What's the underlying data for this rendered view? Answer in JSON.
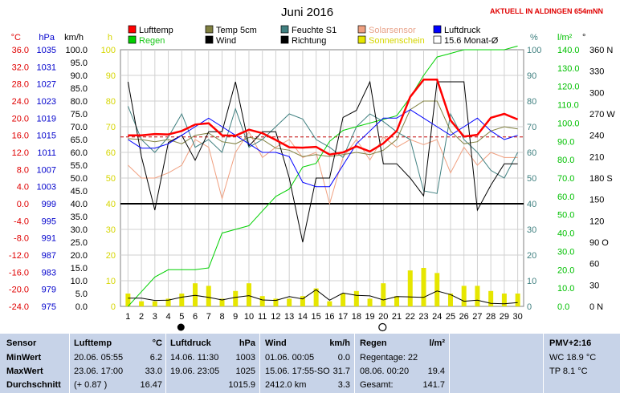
{
  "header": {
    "title": "Juni 2016",
    "location": "AKTUELL IN ALDINGEN 654mNN"
  },
  "legend": [
    {
      "label": "Lufttemp",
      "color": "#ff0000",
      "text_class": "leg"
    },
    {
      "label": "Temp 5cm",
      "color": "#808040",
      "text_class": "leg"
    },
    {
      "label": "Feuchte S1",
      "color": "#408080",
      "text_class": "leg"
    },
    {
      "label": "Solarsensor",
      "color": "#f0a080",
      "text_class": "leg-orange"
    },
    {
      "label": "Luftdruck",
      "color": "#0000ff",
      "text_class": "leg"
    },
    {
      "label": "Regen",
      "color": "#00d000",
      "text_class": "leg-green"
    },
    {
      "label": "Wind",
      "color": "#000000",
      "text_class": "leg"
    },
    {
      "label": "Richtung",
      "color": "#000000",
      "text_class": "leg"
    },
    {
      "label": "Sonnenschein",
      "color": "#e6e600",
      "text_class": "leg-yellow"
    },
    {
      "label": "15.6 Monat-Ø",
      "color": "#ffffff",
      "text_class": "leg"
    }
  ],
  "axes": {
    "temp": {
      "unit": "°C",
      "color": "#e00000",
      "ticks": [
        "36.0",
        "32.0",
        "28.0",
        "24.0",
        "20.0",
        "16.0",
        "12.0",
        "8.0",
        "4.0",
        "0.0",
        "-4.0",
        "-8.0",
        "-12.0",
        "-16.0",
        "-20.0",
        "-24.0"
      ]
    },
    "press": {
      "unit": "hPa",
      "color": "#0000cc",
      "ticks": [
        "1035",
        "1031",
        "1027",
        "1023",
        "1019",
        "1015",
        "1011",
        "1007",
        "1003",
        "999",
        "995",
        "991",
        "987",
        "983",
        "979",
        "975"
      ]
    },
    "wind": {
      "unit": "km/h",
      "color": "#000000",
      "ticks": [
        "100.0",
        "95.0",
        "90.0",
        "85.0",
        "80.0",
        "75.0",
        "70.0",
        "65.0",
        "60.0",
        "55.0",
        "50.0",
        "45.0",
        "40.0",
        "35.0",
        "30.0",
        "25.0",
        "20.0",
        "15.0",
        "10.0",
        "5.0",
        "0.0"
      ]
    },
    "sun": {
      "unit": "h",
      "color": "#d6d600",
      "ticks": [
        "100",
        "90",
        "80",
        "70",
        "60",
        "50",
        "40",
        "30",
        "20",
        "10",
        "0"
      ]
    },
    "humid": {
      "unit": "%",
      "color": "#408080",
      "ticks": [
        "100",
        "90",
        "80",
        "70",
        "60",
        "50",
        "40",
        "30",
        "20",
        "10",
        "0"
      ]
    },
    "rain": {
      "unit": "l/m²",
      "color": "#00c000",
      "ticks": [
        "140.0",
        "130.0",
        "120.0",
        "110.0",
        "100.0",
        "90.0",
        "80.0",
        "70.0",
        "60.0",
        "50.0",
        "40.0",
        "30.0",
        "20.0",
        "10.0",
        "0.0"
      ]
    },
    "dir": {
      "unit": "°",
      "color": "#000000",
      "ticks": [
        "360 N",
        "330",
        "300",
        "270 W",
        "240",
        "210",
        "180 S",
        "150",
        "120",
        "90 O",
        "60",
        "30",
        "0 N"
      ]
    }
  },
  "chart_data": {
    "type": "line",
    "title": "Juni 2016",
    "x": [
      1,
      2,
      3,
      4,
      5,
      6,
      7,
      8,
      9,
      10,
      11,
      12,
      13,
      14,
      15,
      16,
      17,
      18,
      19,
      20,
      21,
      22,
      23,
      24,
      25,
      26,
      27,
      28,
      29,
      30
    ],
    "series": [
      {
        "name": "Lufttemp",
        "unit": "°C",
        "color": "#ff0000",
        "values": [
          16.0,
          16.0,
          16.3,
          16.2,
          17.0,
          18.5,
          18.8,
          16.0,
          15.9,
          17.3,
          16.5,
          14.9,
          13.2,
          13.1,
          13.3,
          11.5,
          12.0,
          13.4,
          12.2,
          14.1,
          17.0,
          25.0,
          29.0,
          29.0,
          19.5,
          15.7,
          16.1,
          20.1,
          21.0,
          19.7
        ]
      },
      {
        "name": "Temp 5cm",
        "unit": "°C",
        "color": "#808040",
        "values": [
          15.2,
          15.0,
          14.5,
          15.0,
          14.0,
          16.0,
          16.5,
          14.5,
          14.0,
          15.5,
          15.0,
          13.0,
          12.5,
          11.0,
          11.5,
          11.0,
          11.5,
          12.0,
          11.5,
          12.5,
          15.0,
          22.0,
          24.0,
          24.0,
          17.0,
          14.0,
          14.5,
          17.0,
          18.0,
          17.5
        ]
      },
      {
        "name": "Feuchte S1",
        "unit": "%",
        "color": "#408080",
        "values": [
          78,
          65,
          60,
          66,
          75,
          62,
          65,
          60,
          77,
          62,
          65,
          70,
          75,
          73,
          65,
          62,
          58,
          70,
          75,
          72,
          68,
          65,
          45,
          44,
          75,
          65,
          60,
          53,
          50,
          60
        ]
      },
      {
        "name": "Solarsensor",
        "unit": "%",
        "color": "#f0a080",
        "values": [
          55,
          50,
          50,
          52,
          55,
          65,
          62,
          42,
          60,
          68,
          58,
          62,
          65,
          58,
          60,
          40,
          58,
          65,
          57,
          66,
          62,
          65,
          63,
          65,
          52,
          62,
          55,
          60,
          58,
          58
        ]
      },
      {
        "name": "Luftdruck",
        "unit": "hPa",
        "color": "#0000ff",
        "values": [
          1014,
          1012,
          1012,
          1013,
          1015,
          1017,
          1019,
          1017,
          1015,
          1013,
          1011,
          1011,
          1010,
          1004,
          1003,
          1003,
          1008,
          1013,
          1016,
          1019,
          1019,
          1021,
          1019,
          1017,
          1015,
          1017,
          1019,
          1016,
          1014,
          1015
        ]
      },
      {
        "name": "Regen",
        "unit": "l/m²",
        "color": "#00d000",
        "values": [
          0,
          8,
          16,
          20,
          20,
          20,
          21,
          40,
          42,
          44,
          52,
          60,
          64,
          76,
          78,
          90,
          96,
          98,
          100,
          102,
          104,
          114,
          126,
          136,
          138,
          140,
          140,
          140,
          140,
          142
        ]
      },
      {
        "name": "Wind",
        "unit": "km/h",
        "color": "#000000",
        "values": [
          3.2,
          3.2,
          2.3,
          2.4,
          3.6,
          4.3,
          3.5,
          2.5,
          3.5,
          4.2,
          2.5,
          2.3,
          3.8,
          2.9,
          6.5,
          2.4,
          5.2,
          4.3,
          4.1,
          2.5,
          3.8,
          3.7,
          3.5,
          6.0,
          4.6,
          2.0,
          2.4,
          1.2,
          1.0,
          1.5
        ]
      },
      {
        "name": "Richtung",
        "unit": "°",
        "color": "#000000",
        "values": [
          315,
          210,
          135,
          230,
          240,
          205,
          245,
          245,
          315,
          225,
          245,
          245,
          180,
          90,
          180,
          180,
          265,
          275,
          315,
          200,
          200,
          180,
          155,
          315,
          315,
          315,
          135,
          170,
          200,
          200
        ]
      },
      {
        "name": "Sonnenschein",
        "unit": "h",
        "color": "#e6e600",
        "values": [
          5,
          2,
          2,
          3,
          5,
          9,
          8,
          3,
          6,
          9,
          4,
          3,
          3,
          4,
          7,
          2,
          5,
          6,
          3,
          9,
          4,
          14,
          15,
          13,
          5,
          8,
          8,
          6,
          5,
          5
        ]
      }
    ],
    "monthly_avg": {
      "name": "15.6 Monat-Ø",
      "value": 15.6,
      "unit": "°C"
    },
    "reference_line": {
      "value": 40,
      "unit": "km/h"
    },
    "ylim": {
      "temp": [
        -24,
        36
      ],
      "press": [
        975,
        1035
      ],
      "wind": [
        0,
        100
      ],
      "sun": [
        0,
        100
      ],
      "humid": [
        0,
        100
      ],
      "rain": [
        0,
        140
      ],
      "dir": [
        0,
        360
      ]
    },
    "grid": true
  },
  "markers": [
    {
      "day": 5,
      "kind": "new-moon"
    },
    {
      "day": 20,
      "kind": "full-moon"
    }
  ],
  "stats": {
    "sensor": {
      "title": "Sensor",
      "rows": [
        "MinWert",
        "MaxWert",
        "Durchschnitt"
      ]
    },
    "temp": {
      "title": "Lufttemp",
      "unit": "°C",
      "rows": [
        [
          "20.06.  05:55",
          "6.2"
        ],
        [
          "23.06.  17:00",
          "33.0"
        ],
        [
          "(+ 0.87 )",
          "16.47"
        ]
      ]
    },
    "press": {
      "title": "Luftdruck",
      "unit": "hPa",
      "rows": [
        [
          "14.06.  11:30",
          "1003"
        ],
        [
          "19.06.  23:05",
          "1025"
        ],
        [
          "",
          "1015.9"
        ]
      ]
    },
    "wind": {
      "title": "Wind",
      "unit": "km/h",
      "rows": [
        [
          "01.06.  00:05",
          "0.0"
        ],
        [
          "15.06.  17:55-SO",
          "31.7"
        ],
        [
          "2412.0 km",
          "3.3"
        ]
      ]
    },
    "rain": {
      "title": "Regen",
      "unit": "l/m²",
      "rows": [
        [
          "Regentage: 22",
          ""
        ],
        [
          "08.06.  00:20",
          "19.4"
        ],
        [
          "Gesamt:",
          "141.7"
        ]
      ]
    },
    "pmv": {
      "title": "PMV+2:16",
      "rows": [
        "WC 18.9 °C",
        "TP 8.1 °C"
      ]
    }
  }
}
